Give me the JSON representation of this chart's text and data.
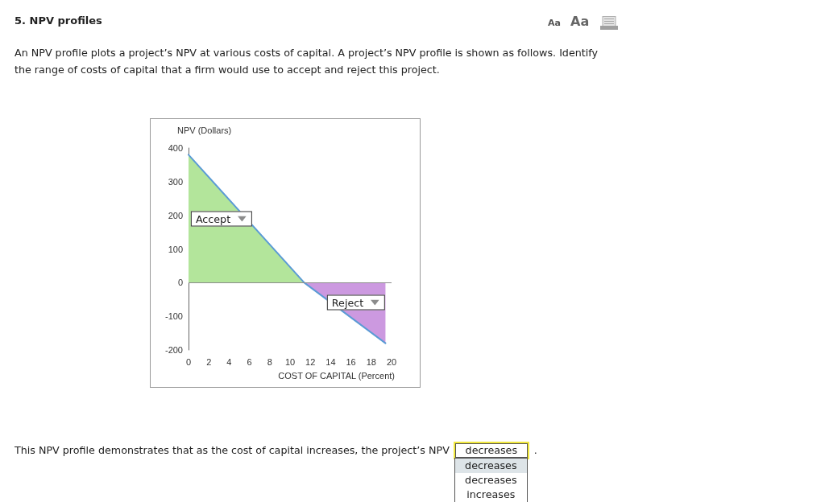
{
  "chart_data": {
    "type": "line",
    "title": "5. NPV profiles",
    "subtitle": "An NPV profile plots a project’s NPV at various costs of capital. A project’s NPV profile is shown as follows. Identify the range of costs of capital that a firm would use to accept and reject this project.",
    "xlabel": "COST OF CAPITAL (Percent)",
    "ylabel": "NPV (Dollars)",
    "xlim": [
      0,
      20
    ],
    "xticks": [
      0,
      2,
      4,
      6,
      8,
      10,
      12,
      14,
      16,
      18,
      20
    ],
    "ylim": [
      -200,
      400
    ],
    "yticks": [
      -200,
      -100,
      0,
      100,
      200,
      300,
      400
    ],
    "marker": "none",
    "series": [
      {
        "type": "area",
        "color": "#b3e59b",
        "x": [
          0,
          11.4
        ],
        "values": [
          380,
          0
        ]
      },
      {
        "type": "area",
        "color": "#cc99e0",
        "x": [
          11.4,
          19.4
        ],
        "values": [
          0,
          -180
        ]
      },
      {
        "color": "#5b9bd5",
        "x": [
          0,
          11.4,
          19.4
        ],
        "values": [
          380,
          0,
          -180
        ]
      }
    ],
    "ref_lines": [
      {
        "axis": "y",
        "value": 0,
        "color": "#8c8c8c"
      }
    ],
    "annotations": [
      "Aa",
      "Aa",
      "Accept",
      "Reject",
      "This NPV profile demonstrates that as the cost of capital increases, the project’s NPV",
      "decreases",
      "decreases",
      "increases",
      "."
    ]
  }
}
